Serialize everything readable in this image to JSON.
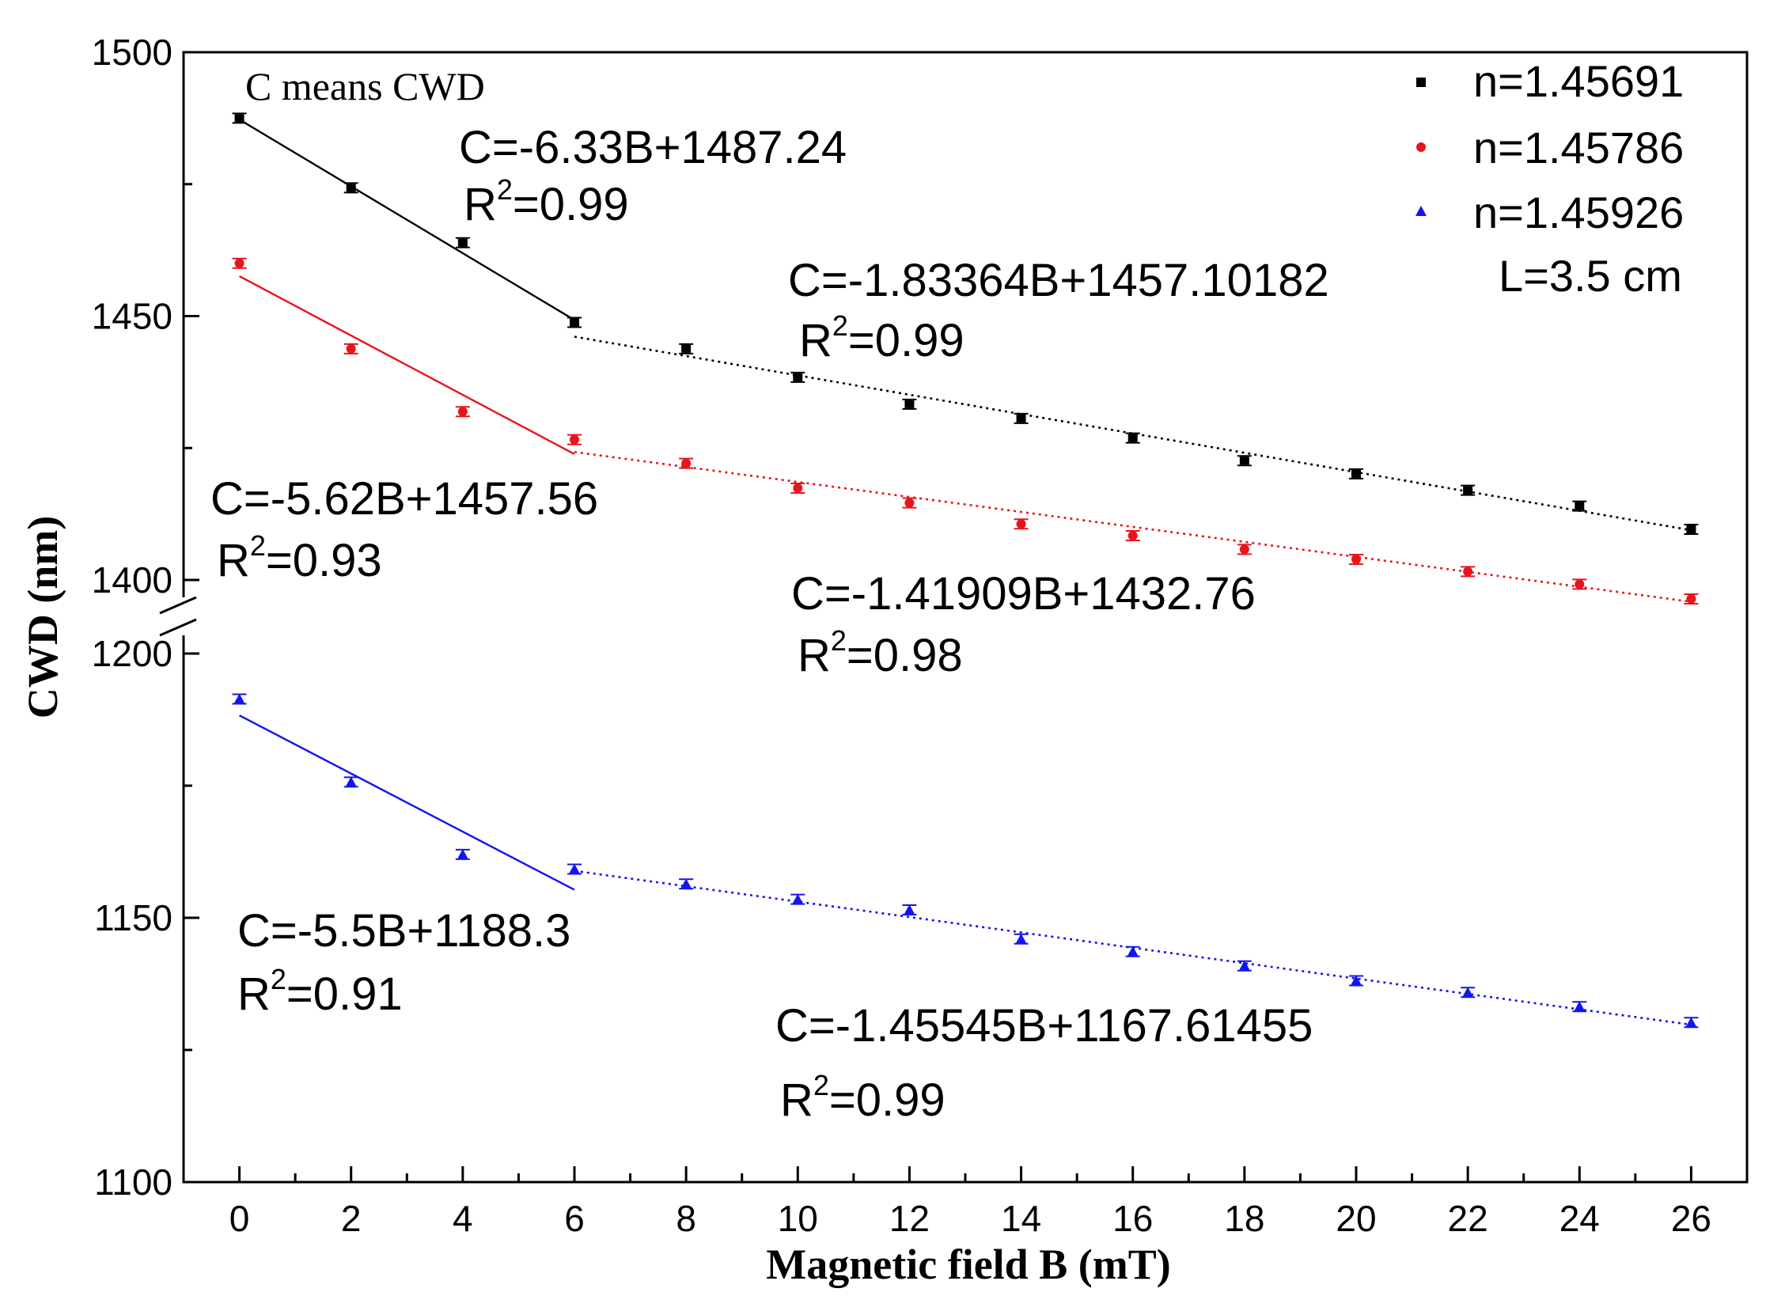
{
  "chart_data": {
    "type": "scatter",
    "title": "",
    "xlabel": "Magnetic field B (mT)",
    "ylabel": "CWD (nm)",
    "xlim": [
      -1,
      27
    ],
    "x_ticks": [
      0,
      2,
      4,
      6,
      8,
      10,
      12,
      14,
      16,
      18,
      20,
      22,
      24,
      26
    ],
    "ylim_upper": [
      1400,
      1500
    ],
    "ylim_lower": [
      1100,
      1200
    ],
    "y_ticks_upper": [
      1400,
      1450,
      1500
    ],
    "y_ticks_lower": [
      1100,
      1150,
      1200
    ],
    "axis_break": "between 1200 and 1400",
    "note": "C means CWD",
    "legend_extra": "L=3.5 cm",
    "legend_position": "top-right",
    "series": [
      {
        "name": "n=1.45691",
        "color": "#000000",
        "marker": "square",
        "x": [
          0,
          2,
          4,
          6,
          8,
          10,
          12,
          14,
          16,
          18,
          20,
          22,
          24,
          26
        ],
        "y": [
          1487.5,
          1474.3,
          1463.9,
          1448.8,
          1443.8,
          1438.4,
          1433.3,
          1430.6,
          1426.9,
          1422.6,
          1420.1,
          1417.0,
          1414.0,
          1409.6
        ],
        "fits": [
          {
            "x_range": [
              0,
              6
            ],
            "slope": -6.33,
            "intercept": 1487.24,
            "style": "solid",
            "equation": "C=-6.33B+1487.24",
            "r2_prefix": "R",
            "r2_sup": "2",
            "r2_value": "=0.99"
          },
          {
            "x_range": [
              6,
              26
            ],
            "slope": -1.83364,
            "intercept": 1457.10182,
            "style": "dotted",
            "equation": "C=-1.83364B+1457.10182",
            "r2_prefix": "R",
            "r2_sup": "2",
            "r2_value": "=0.99"
          }
        ]
      },
      {
        "name": "n=1.45786",
        "color": "#e8141c",
        "marker": "circle",
        "x": [
          0,
          2,
          4,
          6,
          8,
          10,
          12,
          14,
          16,
          18,
          20,
          22,
          24,
          26
        ],
        "y": [
          1460.0,
          1443.8,
          1431.9,
          1426.6,
          1422.1,
          1417.4,
          1414.6,
          1410.6,
          1408.4,
          1405.8,
          1403.9,
          1401.6,
          1399.2,
          1396.4
        ],
        "fits": [
          {
            "x_range": [
              0,
              6
            ],
            "slope": -5.62,
            "intercept": 1457.56,
            "style": "solid",
            "equation": "C=-5.62B+1457.56",
            "r2_prefix": "R",
            "r2_sup": "2",
            "r2_value": "=0.93"
          },
          {
            "x_range": [
              6,
              26
            ],
            "slope": -1.41909,
            "intercept": 1432.76,
            "style": "dotted",
            "equation": "C=-1.41909B+1432.76",
            "r2_prefix": "R",
            "r2_sup": "2",
            "r2_value": "=0.98"
          }
        ]
      },
      {
        "name": "n=1.45926",
        "color": "#1414f0",
        "marker": "triangle",
        "x": [
          0,
          2,
          4,
          6,
          8,
          10,
          12,
          14,
          16,
          18,
          20,
          22,
          24,
          26
        ],
        "y": [
          1191.4,
          1175.7,
          1162.0,
          1159.2,
          1156.4,
          1153.5,
          1151.5,
          1146.0,
          1143.6,
          1140.9,
          1138.1,
          1135.9,
          1133.2,
          1130.2
        ],
        "fits": [
          {
            "x_range": [
              0,
              6
            ],
            "slope": -5.5,
            "intercept": 1188.3,
            "style": "solid",
            "equation": "C=-5.5B+1188.3",
            "r2_prefix": "R",
            "r2_sup": "2",
            "r2_value": "=0.91"
          },
          {
            "x_range": [
              6,
              26
            ],
            "slope": -1.45545,
            "intercept": 1167.61455,
            "style": "dotted",
            "equation": "C=-1.45545B+1167.61455",
            "r2_prefix": "R",
            "r2_sup": "2",
            "r2_value": "=0.99"
          }
        ]
      }
    ]
  }
}
